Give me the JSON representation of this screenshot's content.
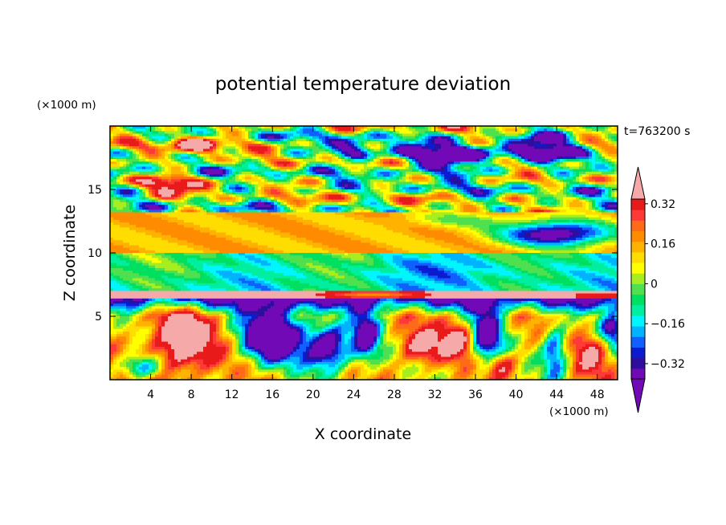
{
  "chart_data": {
    "type": "heatmap",
    "title": "potential temperature deviation",
    "xlabel": "X coordinate",
    "ylabel": "Z coordinate",
    "x_unit": "(×1000 m)",
    "y_unit": "(×1000 m)",
    "time_label": "t=763200 s",
    "xlim": [
      0,
      50
    ],
    "ylim": [
      0,
      20
    ],
    "x_ticks": [
      4,
      8,
      12,
      16,
      20,
      24,
      28,
      32,
      36,
      40,
      44,
      48
    ],
    "y_ticks": [
      5,
      10,
      15
    ],
    "colorbar": {
      "ticks": [
        "0.32",
        "0.16",
        "0",
        "−0.16",
        "−0.32"
      ],
      "tick_values": [
        0.32,
        0.16,
        0,
        -0.16,
        -0.32
      ],
      "levels": [
        -0.4,
        -0.36,
        -0.32,
        -0.28,
        -0.24,
        -0.2,
        -0.16,
        -0.12,
        -0.08,
        -0.04,
        0,
        0.04,
        0.08,
        0.12,
        0.16,
        0.2,
        0.24,
        0.28,
        0.32,
        0.36,
        0.4
      ],
      "colors_low_to_high": [
        "#7209b7",
        "#2d0f9e",
        "#0b1cd0",
        "#1060ff",
        "#00b3ff",
        "#00f5ff",
        "#00eea0",
        "#00e060",
        "#4fe04f",
        "#a6ee1f",
        "#ffff00",
        "#ffdd00",
        "#ffb300",
        "#ff8c00",
        "#ff6a1a",
        "#ff3838",
        "#e81a1a"
      ],
      "extend_low_color": "#7209b7",
      "extend_high_color": "#f6a9a9"
    }
  }
}
